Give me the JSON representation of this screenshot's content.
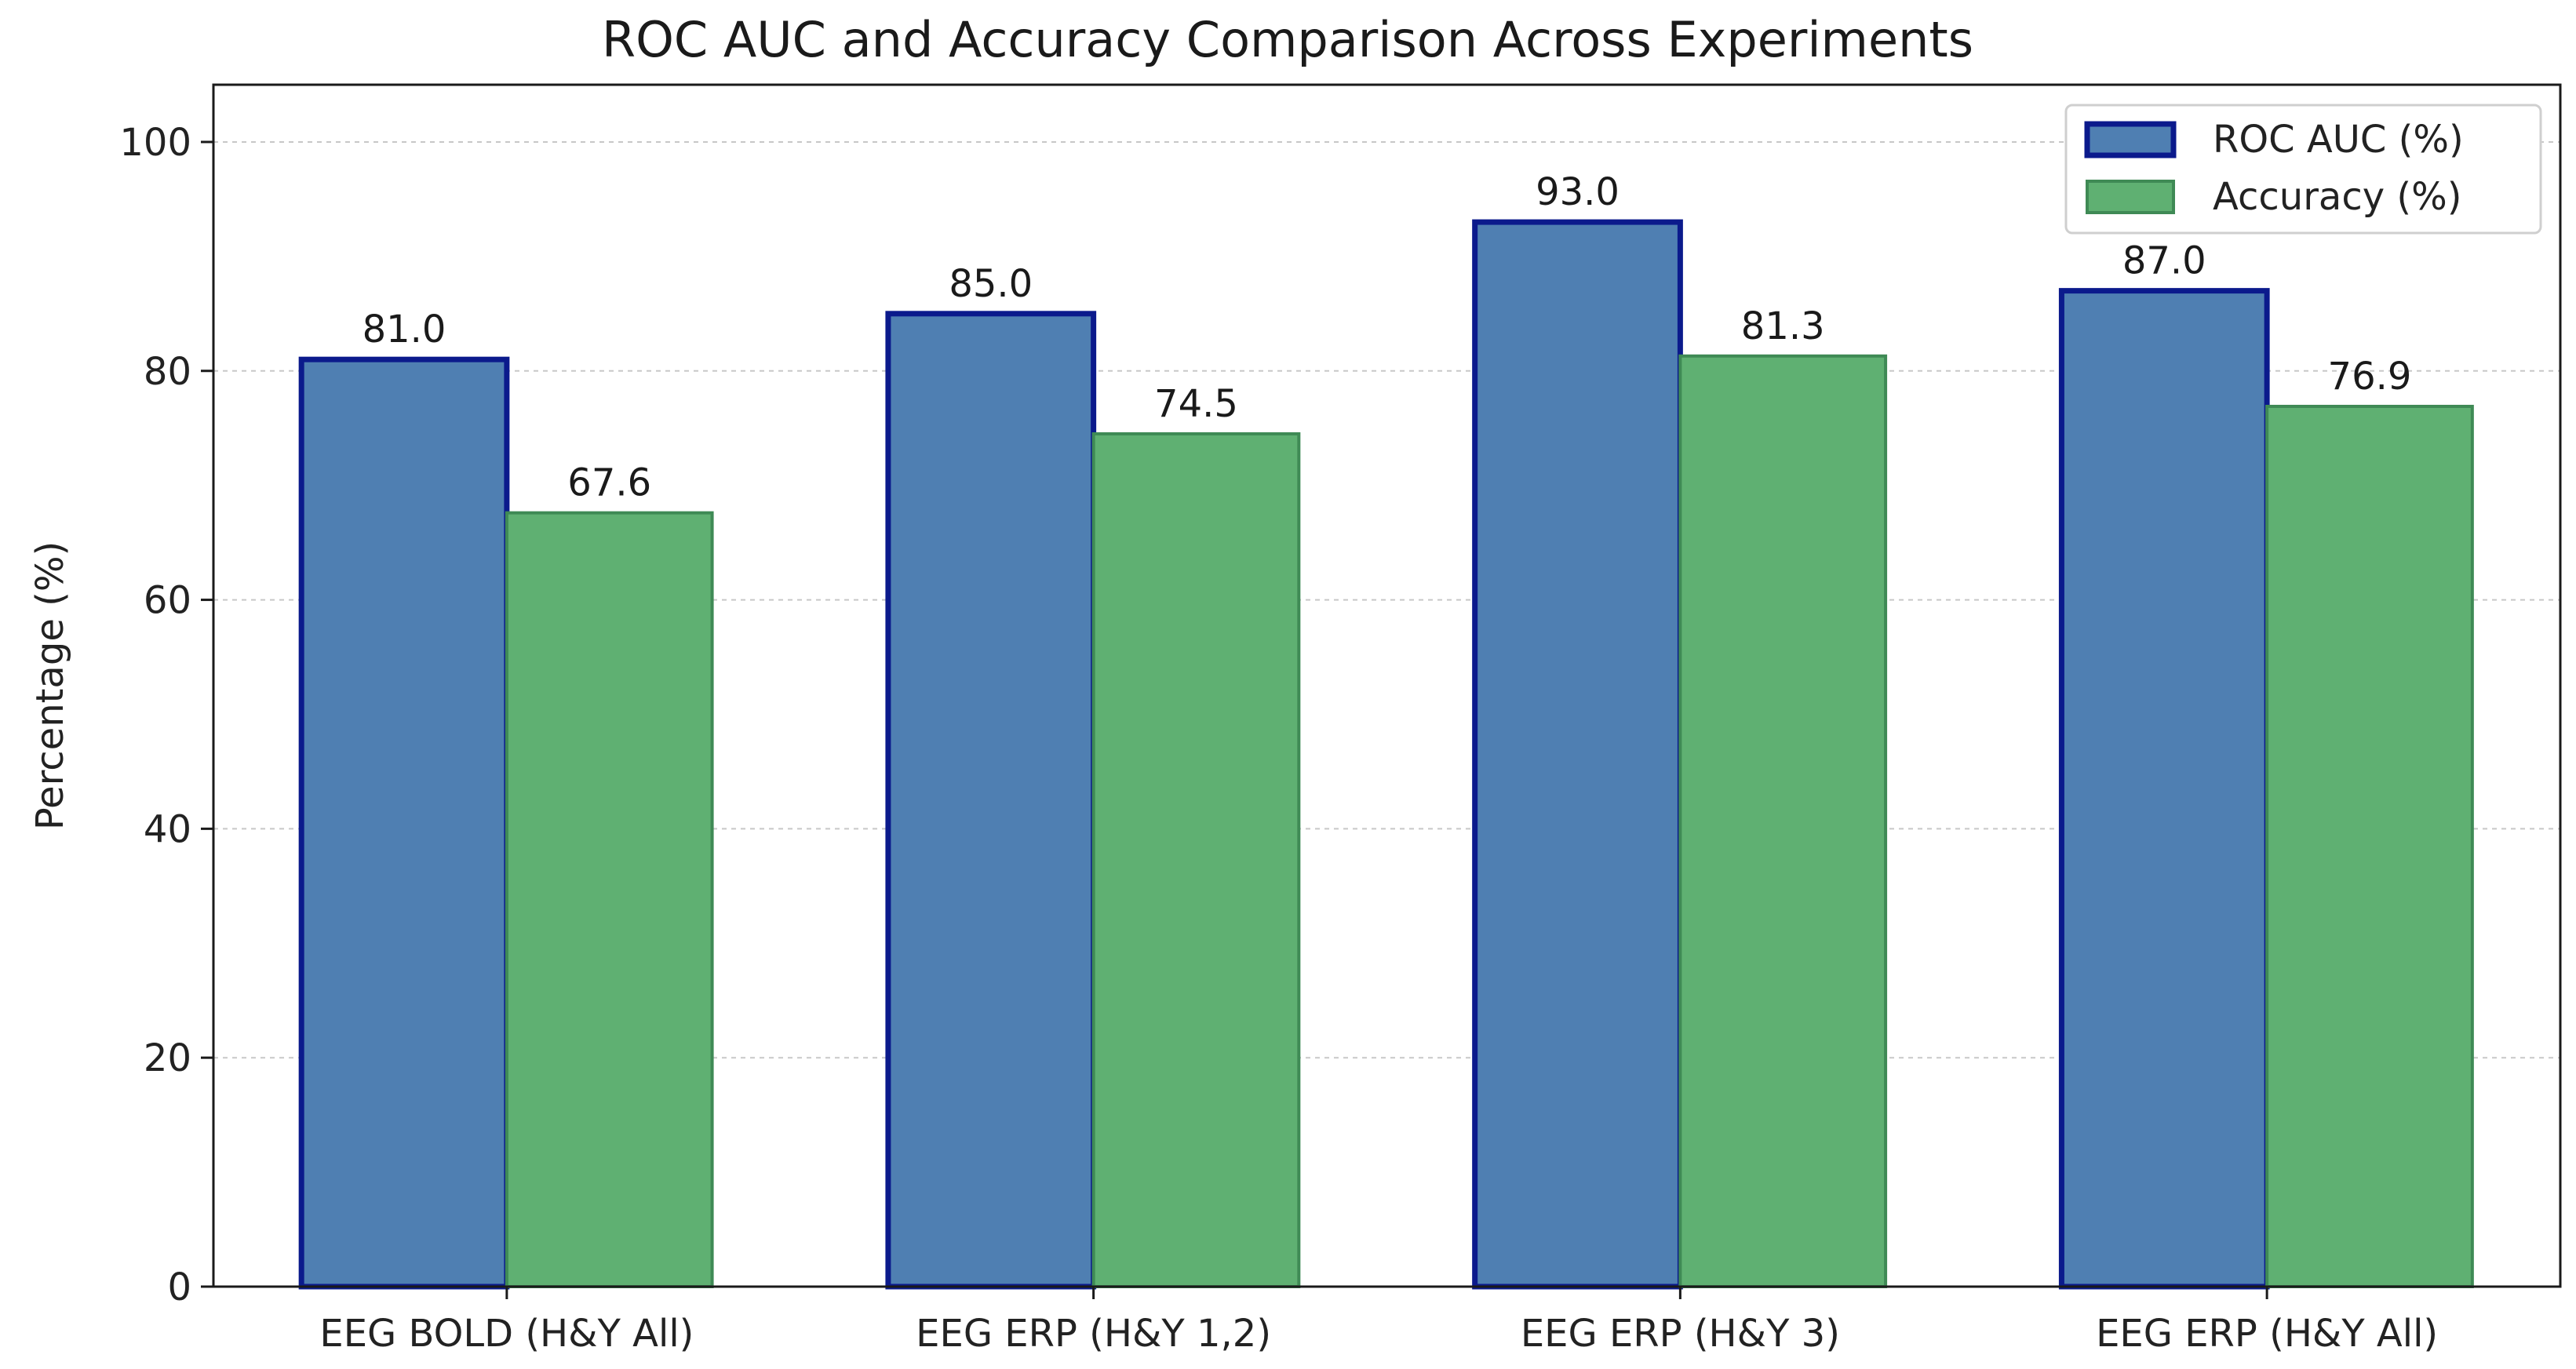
{
  "chart_data": {
    "type": "bar",
    "title": "ROC AUC and Accuracy Comparison Across Experiments",
    "xlabel": "",
    "ylabel": "Percentage (%)",
    "ylim": [
      0,
      105
    ],
    "yticks": [
      0,
      20,
      40,
      60,
      80,
      100
    ],
    "grid": true,
    "legend_position": "top-right",
    "categories": [
      "EEG BOLD (H&Y All)",
      "EEG ERP (H&Y 1,2)",
      "EEG ERP (H&Y 3)",
      "EEG ERP (H&Y All)"
    ],
    "series": [
      {
        "name": "ROC AUC (%)",
        "values": [
          81.0,
          85.0,
          93.0,
          87.0
        ],
        "color": "#4f7fb2",
        "edge_color": "#0b1a8c",
        "labels": [
          "81.0",
          "85.0",
          "93.0",
          "87.0"
        ]
      },
      {
        "name": "Accuracy (%)",
        "values": [
          67.6,
          74.5,
          81.3,
          76.9
        ],
        "color": "#5fb072",
        "edge_color": "#3f8a55",
        "labels": [
          "67.6",
          "74.5",
          "81.3",
          "76.9"
        ]
      }
    ]
  }
}
